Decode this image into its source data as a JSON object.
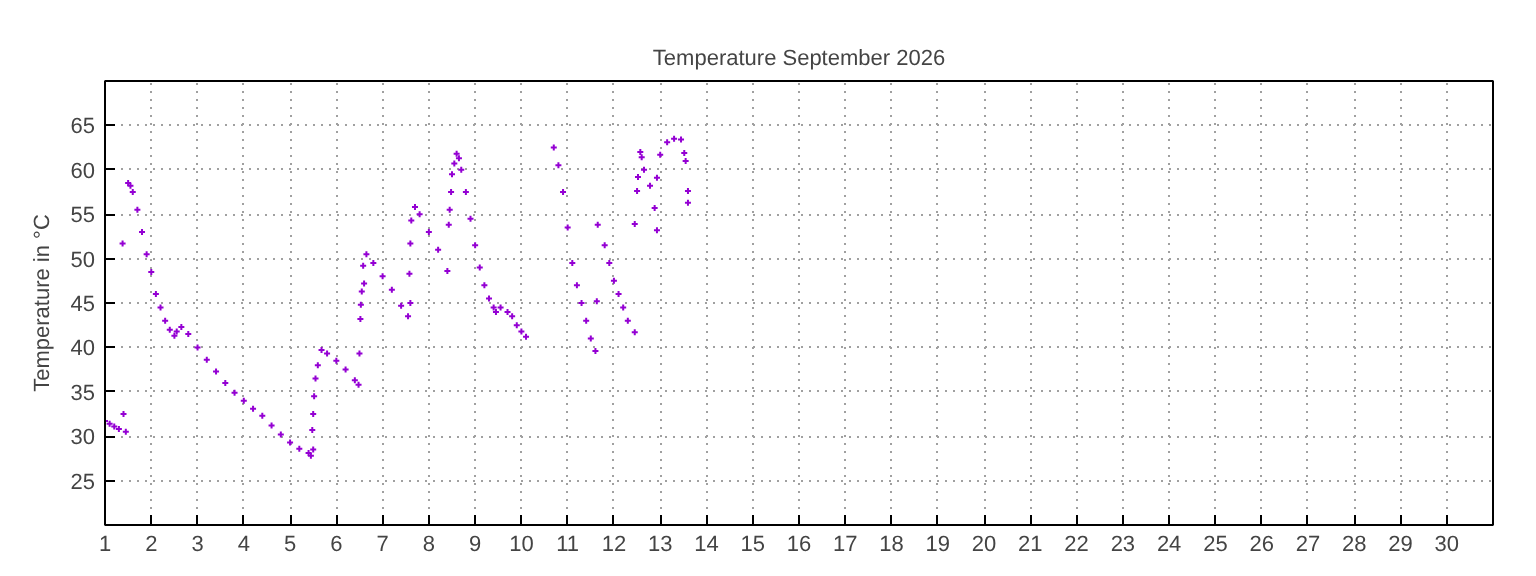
{
  "chart_data": {
    "type": "scatter",
    "title": "Temperature September 2026",
    "ylabel": "Temperature in °C",
    "marker": "cross",
    "grid": true,
    "xlim": [
      1,
      31
    ],
    "ylim": [
      20,
      70
    ],
    "xticks": [
      1,
      2,
      3,
      4,
      5,
      6,
      7,
      8,
      9,
      10,
      11,
      12,
      13,
      14,
      15,
      16,
      17,
      18,
      19,
      20,
      21,
      22,
      23,
      24,
      25,
      26,
      27,
      28,
      29,
      30
    ],
    "yticks": [
      25,
      30,
      35,
      40,
      45,
      50,
      55,
      60,
      65
    ],
    "series": [
      {
        "color": "#9400d3",
        "x": [
          1.0,
          1.1,
          1.2,
          1.3,
          1.45,
          1.4,
          1.38,
          1.5,
          1.55,
          1.6,
          1.7,
          1.8,
          1.9,
          2.0,
          2.1,
          2.2,
          2.3,
          2.4,
          2.5,
          2.55,
          2.65,
          2.8,
          3.0,
          3.2,
          3.4,
          3.6,
          3.8,
          4.0,
          4.2,
          4.4,
          4.6,
          4.8,
          5.0,
          5.2,
          5.4,
          5.45,
          5.5,
          5.48,
          5.5,
          5.52,
          5.55,
          5.6,
          5.68,
          5.8,
          6.0,
          6.2,
          6.4,
          6.48,
          6.5,
          6.52,
          6.53,
          6.55,
          6.6,
          6.58,
          6.65,
          6.8,
          7.0,
          7.2,
          7.4,
          7.55,
          7.6,
          7.58,
          7.6,
          7.62,
          7.7,
          7.8,
          8.0,
          8.2,
          8.4,
          8.43,
          8.45,
          8.48,
          8.5,
          8.55,
          8.6,
          8.65,
          8.7,
          8.8,
          8.9,
          9.0,
          9.1,
          9.2,
          9.3,
          9.4,
          9.45,
          9.55,
          9.7,
          9.8,
          9.9,
          10.0,
          10.1,
          10.7,
          10.8,
          10.9,
          11.0,
          11.1,
          11.2,
          11.3,
          11.4,
          11.5,
          11.6,
          11.63,
          11.65,
          11.8,
          11.9,
          12.0,
          12.1,
          12.2,
          12.3,
          12.45,
          12.45,
          12.5,
          12.52,
          12.57,
          12.6,
          12.65,
          12.78,
          12.88,
          12.93,
          12.93,
          13.0,
          13.15,
          13.3,
          13.45,
          13.52,
          13.55,
          13.6,
          13.6
        ],
        "values": [
          31.7,
          31.4,
          31.1,
          30.8,
          30.5,
          32.5,
          51.7,
          58.5,
          58.2,
          57.5,
          55.5,
          53,
          50.5,
          48.5,
          46,
          44.5,
          43,
          42,
          41.3,
          41.8,
          42.3,
          41.5,
          40,
          38.6,
          37.3,
          36,
          34.9,
          34,
          33.1,
          32.3,
          31.2,
          30.2,
          29.3,
          28.6,
          28.1,
          27.8,
          28.5,
          30.7,
          32.5,
          34.5,
          36.5,
          38,
          39.7,
          39.3,
          38.5,
          37.5,
          36.3,
          35.8,
          39.3,
          43.2,
          44.8,
          46.3,
          47.2,
          49.2,
          50.5,
          49.5,
          48,
          46.5,
          44.7,
          43.5,
          45,
          48.3,
          51.7,
          54.3,
          55.8,
          55,
          53,
          51,
          48.6,
          53.8,
          55.5,
          57.5,
          59.5,
          60.7,
          61.8,
          61.3,
          60,
          57.5,
          54.5,
          51.5,
          49,
          47,
          45.5,
          44.5,
          44,
          44.5,
          44,
          43.5,
          42.5,
          41.8,
          41.2,
          62.5,
          60.5,
          57.5,
          53.5,
          49.5,
          47,
          45,
          43,
          41,
          39.6,
          45.2,
          53.8,
          51.5,
          49.5,
          47.5,
          46,
          44.5,
          43,
          41.7,
          53.9,
          57.6,
          59.2,
          62,
          61.4,
          60,
          58.2,
          55.7,
          53.2,
          59.1,
          61.7,
          63.1,
          63.5,
          63.4,
          61.9,
          61,
          57.6,
          56.3
        ]
      }
    ]
  }
}
